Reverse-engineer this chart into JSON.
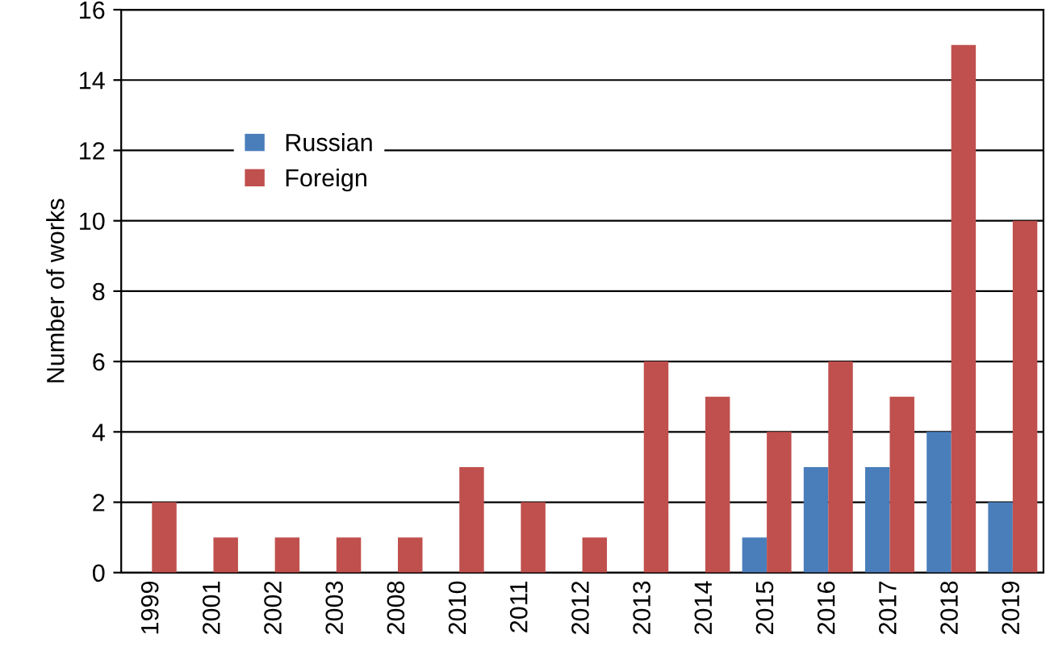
{
  "chart_data": {
    "type": "bar",
    "ylabel": "Number of works",
    "categories": [
      "1999",
      "2001",
      "2002",
      "2003",
      "2008",
      "2010",
      "2011",
      "2012",
      "2013",
      "2014",
      "2015",
      "2016",
      "2017",
      "2018",
      "2019"
    ],
    "series": [
      {
        "name": "Russian",
        "color": "#4a7ebb",
        "values": [
          0,
          0,
          0,
          0,
          0,
          0,
          0,
          0,
          0,
          0,
          1,
          3,
          3,
          4,
          2
        ]
      },
      {
        "name": "Foreign",
        "color": "#c0504d",
        "values": [
          2,
          1,
          1,
          1,
          1,
          3,
          2,
          1,
          6,
          5,
          4,
          6,
          5,
          15,
          10
        ]
      }
    ],
    "ylim": [
      0,
      16
    ],
    "yticks": [
      0,
      2,
      4,
      6,
      8,
      10,
      12,
      14,
      16
    ],
    "grid": "y",
    "legend": "top left"
  }
}
